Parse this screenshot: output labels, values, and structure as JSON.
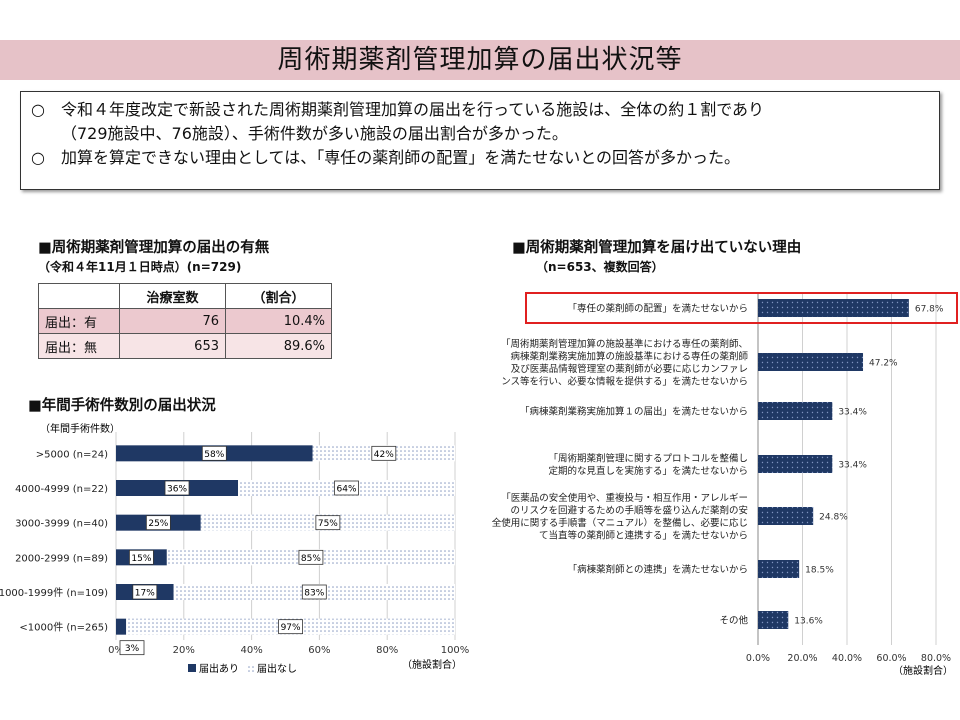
{
  "title": "周術期薬剤管理加算の届出状況等",
  "summary": [
    {
      "mark": "○",
      "text": "令和４年度改定で新設された周術期薬剤管理加算の届出を行っている施設は、全体の約１割であり"
    },
    {
      "mark": "",
      "text": "（729施設中、76施設）、手術件数が多い施設の届出割合が多かった。"
    },
    {
      "mark": "○",
      "text": "加算を算定できない理由としては、「専任の薬剤師の配置」を満たせないとの回答が多かった。"
    }
  ],
  "filing_table": {
    "title": "■周術期薬剤管理加算の届出の有無",
    "subtitle": "（令和４年11月１日時点）(n=729)",
    "headers": [
      "",
      "治療室数",
      "（割合）"
    ],
    "rows": [
      {
        "label": "届出：有",
        "count": "76",
        "ratio": "10.4%"
      },
      {
        "label": "届出：無",
        "count": "653",
        "ratio": "89.6%"
      }
    ]
  },
  "chart_data": [
    {
      "type": "bar",
      "stacked": true,
      "orientation": "horizontal",
      "title": "■年間手術件数別の届出状況",
      "ylabel": "（年間手術件数）",
      "xlabel": "（施設割合）",
      "categories": [
        ">5000 (n=24)",
        "4000-4999 (n=22)",
        "3000-3999 (n=40)",
        "2000-2999 (n=89)",
        "1000-1999件 (n=109)",
        "<1000件 (n=265)"
      ],
      "series": [
        {
          "name": "届出あり",
          "values": [
            58,
            36,
            25,
            15,
            17,
            3
          ],
          "labels": [
            "58%",
            "36%",
            "25%",
            "15%",
            "17%",
            "3%"
          ]
        },
        {
          "name": "届出なし",
          "values": [
            42,
            64,
            75,
            85,
            83,
            97
          ],
          "labels": [
            "42%",
            "64%",
            "75%",
            "85%",
            "83%",
            "97%"
          ]
        }
      ],
      "xlim": [
        0,
        100
      ],
      "xticks": [
        "0%",
        "20%",
        "40%",
        "60%",
        "80%",
        "100%"
      ],
      "grid": true,
      "legend": "bottom",
      "colors": {
        "filed": "#1f3864",
        "not_filed": "#dde3ee"
      }
    },
    {
      "type": "bar",
      "orientation": "horizontal",
      "title": "■周術期薬剤管理加算を届け出ていない理由",
      "subtitle": "（n=653、複数回答）",
      "xlabel": "（施設割合）",
      "categories": [
        [
          "「専任の薬剤師の配置」を満たせないから"
        ],
        [
          "「周術期薬剤管理加算の施設基準における専任の薬剤師、",
          "病棟薬剤業務実施加算の施設基準における専任の薬剤師",
          "及び医薬品情報管理室の薬剤師が必要に応じカンファレ",
          "ンス等を行い、必要な情報を提供する」を満たせないから"
        ],
        [
          "「病棟薬剤業務実施加算１の届出」を満たせないから"
        ],
        [
          "「周術期薬剤管理に関するプロトコルを整備し",
          "定期的な見直しを実施する」を満たせないから"
        ],
        [
          "「医薬品の安全使用や、重複投与・相互作用・アレルギー",
          "のリスクを回避するための手順等を盛り込んだ薬剤の安",
          "全使用に関する手順書（マニュアル）を整備し、必要に応じ",
          "て当直等の薬剤師と連携する」を満たせないから"
        ],
        [
          "「病棟薬剤師との連携」を満たせないから"
        ],
        [
          "その他"
        ]
      ],
      "values": [
        67.8,
        47.2,
        33.4,
        33.4,
        24.8,
        18.5,
        13.6
      ],
      "value_labels": [
        "67.8%",
        "47.2%",
        "33.4%",
        "33.4%",
        "24.8%",
        "18.5%",
        "13.6%"
      ],
      "highlight_index": 0,
      "xlim": [
        0,
        80
      ],
      "xticks": [
        "0.0%",
        "20.0%",
        "40.0%",
        "60.0%",
        "80.0%"
      ],
      "grid": true,
      "colors": {
        "bar": "#1f3864",
        "highlight": "#e02020"
      }
    }
  ]
}
